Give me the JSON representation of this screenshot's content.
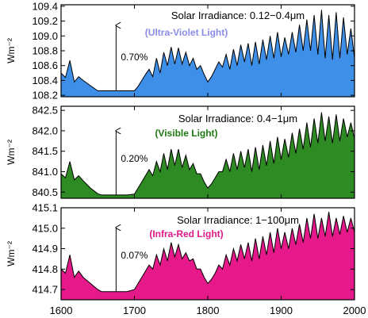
{
  "figure": {
    "shared_x_ticks": [
      "1600",
      "1700",
      "1800",
      "1900",
      "2000"
    ]
  },
  "chart_data": [
    {
      "type": "area",
      "title": "Solar Irradiance: 0.12−0.4μm",
      "subtitle": "(Ultra-Violet Light)",
      "ylabel": "Wm⁻²",
      "annotation": "0.70%",
      "xlim": [
        1600,
        2000
      ],
      "ylim": [
        108.18,
        109.42
      ],
      "y_ticks": [
        "108.2",
        "108.4",
        "108.6",
        "108.8",
        "109.0",
        "109.2",
        "109.4"
      ],
      "y_tick_values": [
        108.2,
        108.4,
        108.6,
        108.8,
        109.0,
        109.2,
        109.4
      ],
      "grid": false,
      "colors": {
        "fill": "#3d8fe8",
        "subtitle": "#8a8ce8"
      },
      "x": [
        1600,
        1606,
        1612,
        1618,
        1624,
        1630,
        1640,
        1650,
        1655,
        1660,
        1670,
        1680,
        1690,
        1700,
        1705,
        1710,
        1715,
        1720,
        1725,
        1730,
        1735,
        1740,
        1745,
        1750,
        1755,
        1760,
        1765,
        1770,
        1775,
        1780,
        1785,
        1790,
        1795,
        1800,
        1805,
        1810,
        1815,
        1820,
        1825,
        1830,
        1835,
        1840,
        1845,
        1850,
        1855,
        1860,
        1865,
        1870,
        1875,
        1880,
        1885,
        1890,
        1895,
        1900,
        1905,
        1910,
        1915,
        1920,
        1925,
        1930,
        1935,
        1940,
        1945,
        1950,
        1955,
        1960,
        1965,
        1970,
        1975,
        1980,
        1985,
        1990,
        1995,
        2000
      ],
      "values": [
        108.5,
        108.44,
        108.67,
        108.38,
        108.45,
        108.4,
        108.33,
        108.26,
        108.26,
        108.26,
        108.26,
        108.26,
        108.26,
        108.26,
        108.32,
        108.4,
        108.48,
        108.55,
        108.45,
        108.7,
        108.5,
        108.78,
        108.6,
        108.85,
        108.62,
        108.84,
        108.62,
        108.78,
        108.6,
        108.7,
        108.55,
        108.6,
        108.48,
        108.38,
        108.45,
        108.55,
        108.65,
        108.58,
        108.75,
        108.55,
        108.82,
        108.6,
        108.88,
        108.65,
        108.9,
        108.6,
        108.92,
        108.62,
        108.95,
        108.68,
        109.0,
        108.7,
        109.05,
        108.72,
        108.98,
        108.75,
        109.05,
        108.78,
        109.15,
        108.8,
        109.22,
        108.8,
        109.28,
        108.75,
        109.35,
        108.7,
        109.28,
        108.68,
        109.32,
        108.7,
        109.25,
        108.75,
        109.1,
        108.7
      ]
    },
    {
      "type": "area",
      "title": "Solar Irradiance: 0.4−1μm",
      "subtitle": "(Visible Light)",
      "ylabel": "Wm⁻²",
      "annotation": "0.20%",
      "xlim": [
        1600,
        2000
      ],
      "ylim": [
        840.35,
        842.6
      ],
      "y_ticks": [
        "840.5",
        "841.0",
        "841.5",
        "842.0",
        "842.5"
      ],
      "y_tick_values": [
        840.5,
        841.0,
        841.5,
        842.0,
        842.5
      ],
      "grid": false,
      "colors": {
        "fill": "#2e8a22",
        "subtitle": "#1f7a12"
      },
      "x": [
        1600,
        1606,
        1612,
        1618,
        1624,
        1630,
        1640,
        1650,
        1655,
        1660,
        1670,
        1680,
        1690,
        1700,
        1705,
        1710,
        1715,
        1720,
        1725,
        1730,
        1735,
        1740,
        1745,
        1750,
        1755,
        1760,
        1765,
        1770,
        1775,
        1780,
        1785,
        1790,
        1795,
        1800,
        1805,
        1810,
        1815,
        1820,
        1825,
        1830,
        1835,
        1840,
        1845,
        1850,
        1855,
        1860,
        1865,
        1870,
        1875,
        1880,
        1885,
        1890,
        1895,
        1900,
        1905,
        1910,
        1915,
        1920,
        1925,
        1930,
        1935,
        1940,
        1945,
        1950,
        1955,
        1960,
        1965,
        1970,
        1975,
        1980,
        1985,
        1990,
        1995,
        2000
      ],
      "values": [
        840.95,
        840.85,
        841.25,
        840.8,
        840.9,
        840.78,
        840.6,
        840.46,
        840.43,
        840.43,
        840.43,
        840.43,
        840.43,
        840.45,
        840.6,
        840.75,
        840.9,
        841.05,
        840.9,
        841.25,
        841.0,
        841.45,
        841.05,
        841.55,
        841.15,
        841.55,
        841.1,
        841.4,
        841.05,
        841.2,
        840.95,
        840.95,
        840.75,
        840.6,
        840.7,
        840.85,
        841.0,
        841.0,
        841.3,
        841.0,
        841.45,
        841.05,
        841.5,
        841.1,
        841.55,
        841.0,
        841.6,
        841.05,
        841.65,
        841.15,
        841.75,
        841.2,
        841.85,
        841.3,
        841.8,
        841.35,
        841.95,
        841.45,
        842.05,
        841.55,
        842.2,
        841.6,
        842.3,
        841.7,
        842.45,
        841.75,
        842.35,
        841.7,
        842.4,
        841.75,
        842.3,
        841.85,
        842.2,
        841.8
      ]
    },
    {
      "type": "area",
      "title": "Solar Irradiance: 1−100μm",
      "subtitle": "(Infra-Red Light)",
      "ylabel": "Wm⁻²",
      "annotation": "0.07%",
      "xlim": [
        1600,
        2000
      ],
      "ylim": [
        414.65,
        415.1
      ],
      "y_ticks": [
        "414.7",
        "414.8",
        "414.9",
        "415.0",
        "415.1"
      ],
      "y_tick_values": [
        414.7,
        414.8,
        414.9,
        415.0,
        415.1
      ],
      "grid": false,
      "colors": {
        "fill": "#e6198a",
        "subtitle": "#e01a88"
      },
      "x": [
        1600,
        1606,
        1612,
        1618,
        1624,
        1630,
        1640,
        1650,
        1655,
        1660,
        1670,
        1680,
        1690,
        1700,
        1705,
        1710,
        1715,
        1720,
        1725,
        1730,
        1735,
        1740,
        1745,
        1750,
        1755,
        1760,
        1765,
        1770,
        1775,
        1780,
        1785,
        1790,
        1795,
        1800,
        1805,
        1810,
        1815,
        1820,
        1825,
        1830,
        1835,
        1840,
        1845,
        1850,
        1855,
        1860,
        1865,
        1870,
        1875,
        1880,
        1885,
        1890,
        1895,
        1900,
        1905,
        1910,
        1915,
        1920,
        1925,
        1930,
        1935,
        1940,
        1945,
        1950,
        1955,
        1960,
        1965,
        1970,
        1975,
        1980,
        1985,
        1990,
        1995,
        2000
      ],
      "values": [
        414.8,
        414.78,
        414.87,
        414.76,
        414.79,
        414.76,
        414.73,
        414.7,
        414.69,
        414.69,
        414.69,
        414.69,
        414.69,
        414.7,
        414.73,
        414.76,
        414.79,
        414.82,
        414.8,
        414.87,
        414.82,
        414.9,
        414.84,
        414.93,
        414.86,
        414.92,
        414.85,
        414.88,
        414.84,
        414.85,
        414.8,
        414.8,
        414.76,
        414.73,
        414.75,
        414.78,
        414.82,
        414.8,
        414.87,
        414.82,
        414.9,
        414.84,
        414.92,
        414.85,
        414.93,
        414.84,
        414.95,
        414.85,
        414.96,
        414.87,
        414.98,
        414.88,
        415.0,
        414.9,
        414.98,
        414.9,
        415.0,
        414.92,
        415.02,
        414.93,
        415.05,
        414.95,
        415.07,
        414.95,
        415.05,
        414.96,
        415.08,
        414.96,
        415.05,
        414.97,
        415.06,
        414.98,
        415.05,
        414.98
      ]
    }
  ]
}
